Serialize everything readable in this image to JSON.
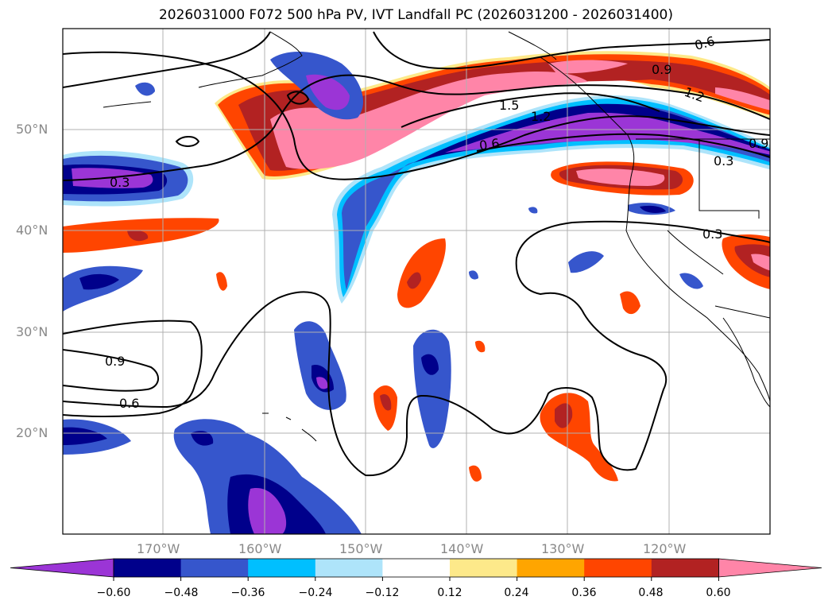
{
  "title": "2026031000 F072 500 hPa PV, IVT Landfall PC (2026031200 - 2026031400)",
  "lon_ticks": [
    "170°W",
    "160°W",
    "150°W",
    "140°W",
    "130°W",
    "120°W"
  ],
  "lat_ticks": [
    "50°N",
    "40°N",
    "30°N",
    "20°N"
  ],
  "contour_labels": [
    "0.6",
    "0.9",
    "1.2",
    "1.5",
    "1.2",
    "0.6",
    "0.9",
    "0.3",
    "0.3",
    "0.9",
    "0.6",
    "0.3"
  ],
  "colorbar": {
    "ticks": [
      "−0.60",
      "−0.48",
      "−0.36",
      "−0.24",
      "−0.12",
      "0.12",
      "0.24",
      "0.36",
      "0.48",
      "0.60"
    ],
    "colors": [
      "#9b35d6",
      "#00008b",
      "#3656cc",
      "#00bfff",
      "#aee4fa",
      "#ffffff",
      "#fde98a",
      "#ffa500",
      "#ff4500",
      "#b22222",
      "#ff85a8"
    ]
  },
  "colors": {
    "purple": "#9b35d6",
    "navy": "#00008b",
    "royal": "#3656cc",
    "sky": "#00bfff",
    "pale": "#aee4fa",
    "yellow": "#fde98a",
    "orange": "#ffa500",
    "redorange": "#ff4500",
    "firebrick": "#b22222",
    "pink": "#ff85a8"
  }
}
